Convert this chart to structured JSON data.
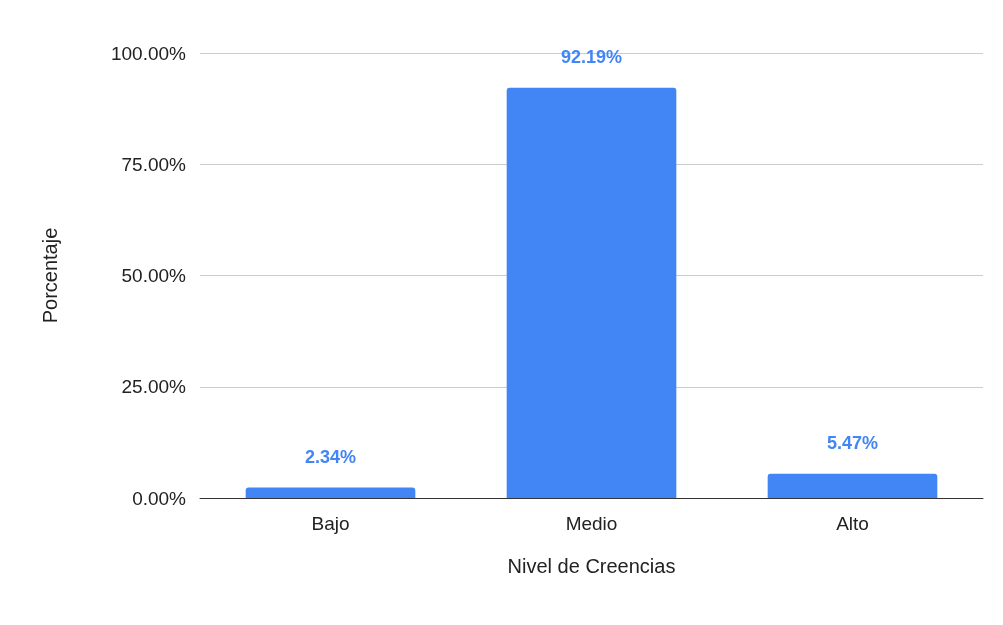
{
  "chart_data": {
    "type": "bar",
    "xlabel": "Nivel de Creencias",
    "ylabel": "Porcentaje",
    "categories": [
      "Bajo",
      "Medio",
      "Alto"
    ],
    "values": [
      2.34,
      92.19,
      5.47
    ],
    "value_labels": [
      "2.34%",
      "92.19%",
      "5.47%"
    ],
    "color": "#4285f4",
    "ylim": [
      0,
      100
    ],
    "yticks": [
      {
        "value": 0,
        "label": "0.00%"
      },
      {
        "value": 25,
        "label": "25.00%"
      },
      {
        "value": 50,
        "label": "50.00%"
      },
      {
        "value": 75,
        "label": "75.00%"
      },
      {
        "value": 100,
        "label": "100.00%"
      }
    ],
    "grid": "y"
  }
}
